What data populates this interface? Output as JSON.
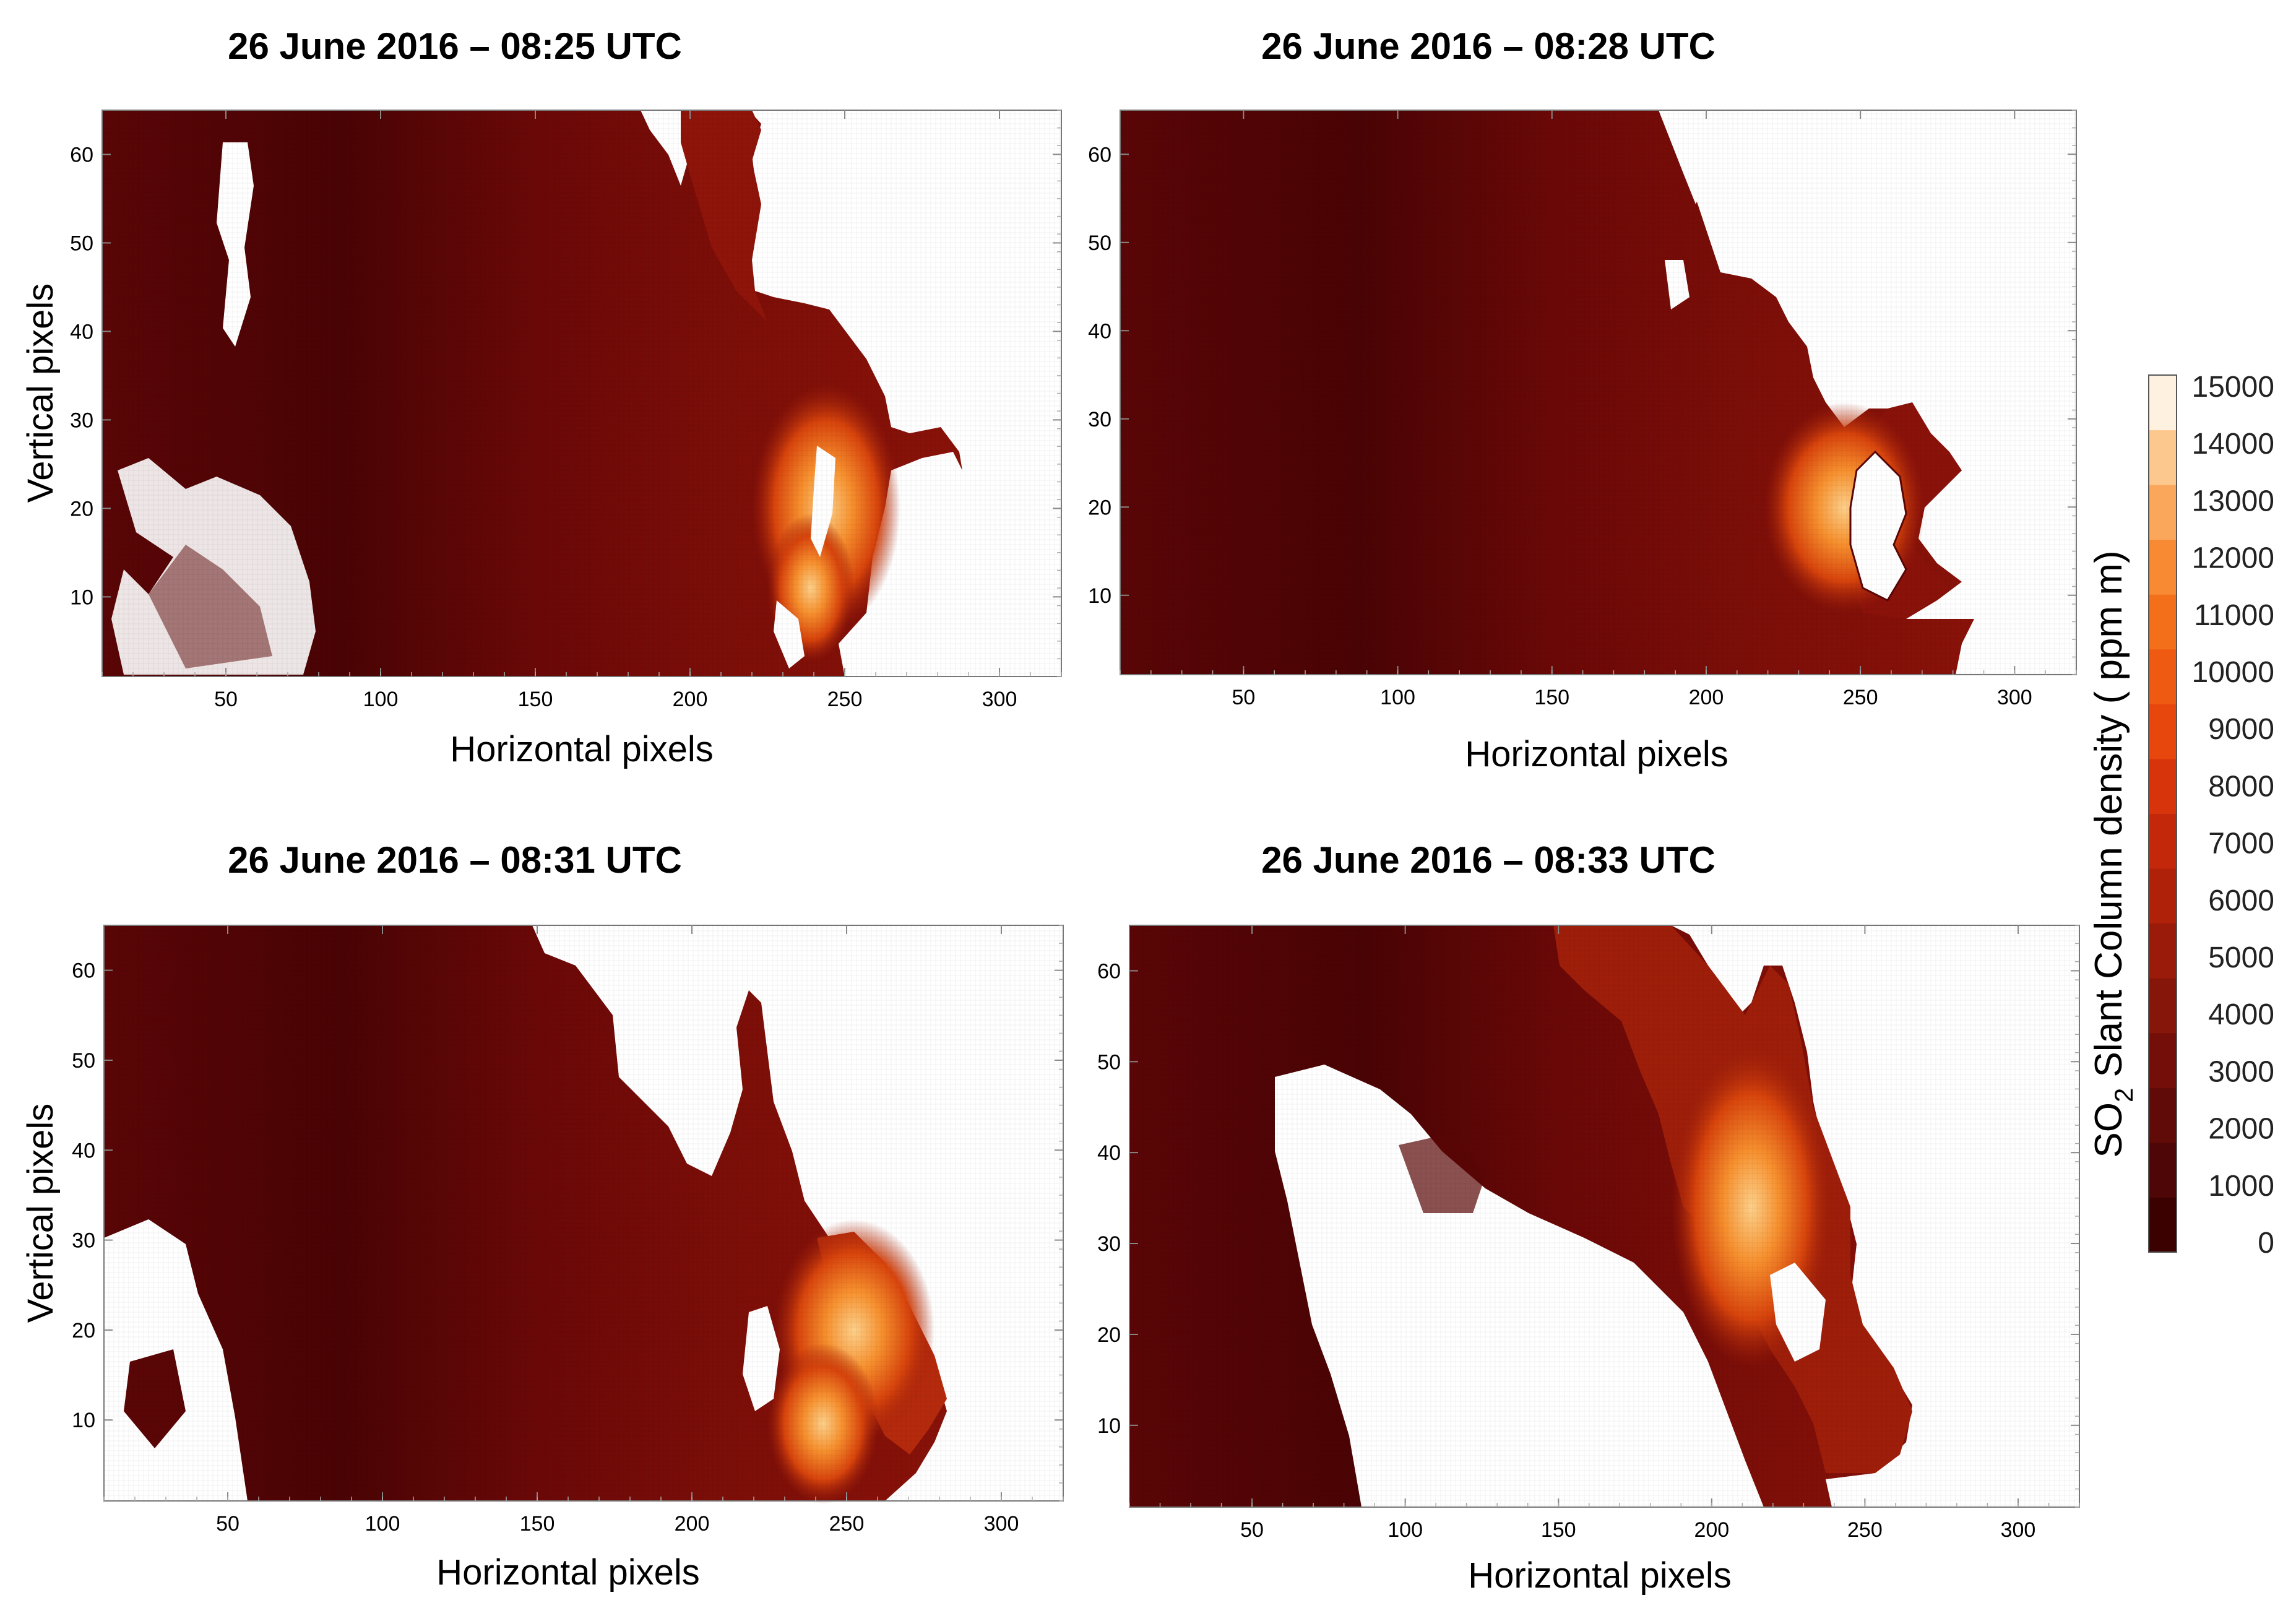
{
  "figure": {
    "colorbar": {
      "label_main": "SO",
      "label_sub": "2",
      "label_rest": " Slant Column density ( ppm m)",
      "ticks": [
        0,
        1000,
        2000,
        3000,
        4000,
        5000,
        6000,
        7000,
        8000,
        9000,
        10000,
        11000,
        12000,
        13000,
        14000,
        15000
      ],
      "colors": [
        "#3b0000",
        "#4f0606",
        "#610b08",
        "#730f08",
        "#86150a",
        "#9b1b0a",
        "#b0210a",
        "#c4280a",
        "#d8340b",
        "#e7460d",
        "#ef5a12",
        "#f46f1a",
        "#f78a33",
        "#fba75b",
        "#fdc88e",
        "#fff1df"
      ]
    }
  },
  "chart_data": [
    {
      "type": "heatmap",
      "title": "26 June 2016 – 08:25 UTC",
      "xlabel": "Horizontal pixels",
      "ylabel": "Vertical pixels",
      "xlim": [
        10,
        320
      ],
      "ylim": [
        1,
        65
      ],
      "xticks": [
        50,
        100,
        150,
        200,
        250,
        300
      ],
      "yticks": [
        10,
        20,
        30,
        40,
        50,
        60
      ],
      "plume_front_x": 250,
      "plume_peak_value": 11000
    },
    {
      "type": "heatmap",
      "title": "26 June 2016 – 08:28 UTC",
      "xlabel": "Horizontal pixels",
      "ylabel": "",
      "xlim": [
        10,
        320
      ],
      "ylim": [
        1,
        65
      ],
      "xticks": [
        50,
        100,
        150,
        200,
        250,
        300
      ],
      "yticks": [
        10,
        20,
        30,
        40,
        50,
        60
      ],
      "plume_front_x": 280,
      "plume_peak_value": 13000
    },
    {
      "type": "heatmap",
      "title": "26 June 2016 – 08:31 UTC",
      "xlabel": "Horizontal pixels",
      "ylabel": "Vertical pixels",
      "xlim": [
        10,
        320
      ],
      "ylim": [
        1,
        65
      ],
      "xticks": [
        50,
        100,
        150,
        200,
        250,
        300
      ],
      "yticks": [
        10,
        20,
        30,
        40,
        50,
        60
      ],
      "plume_front_x": 283,
      "plume_peak_value": 13000
    },
    {
      "type": "heatmap",
      "title": "26 June 2016 – 08:33 UTC",
      "xlabel": "Horizontal pixels",
      "ylabel": "",
      "xlim": [
        10,
        320
      ],
      "ylim": [
        1,
        65
      ],
      "xticks": [
        50,
        100,
        150,
        200,
        250,
        300
      ],
      "yticks": [
        10,
        20,
        30,
        40,
        50,
        60
      ],
      "plume_front_x": 262,
      "plume_peak_value": 12000
    }
  ]
}
